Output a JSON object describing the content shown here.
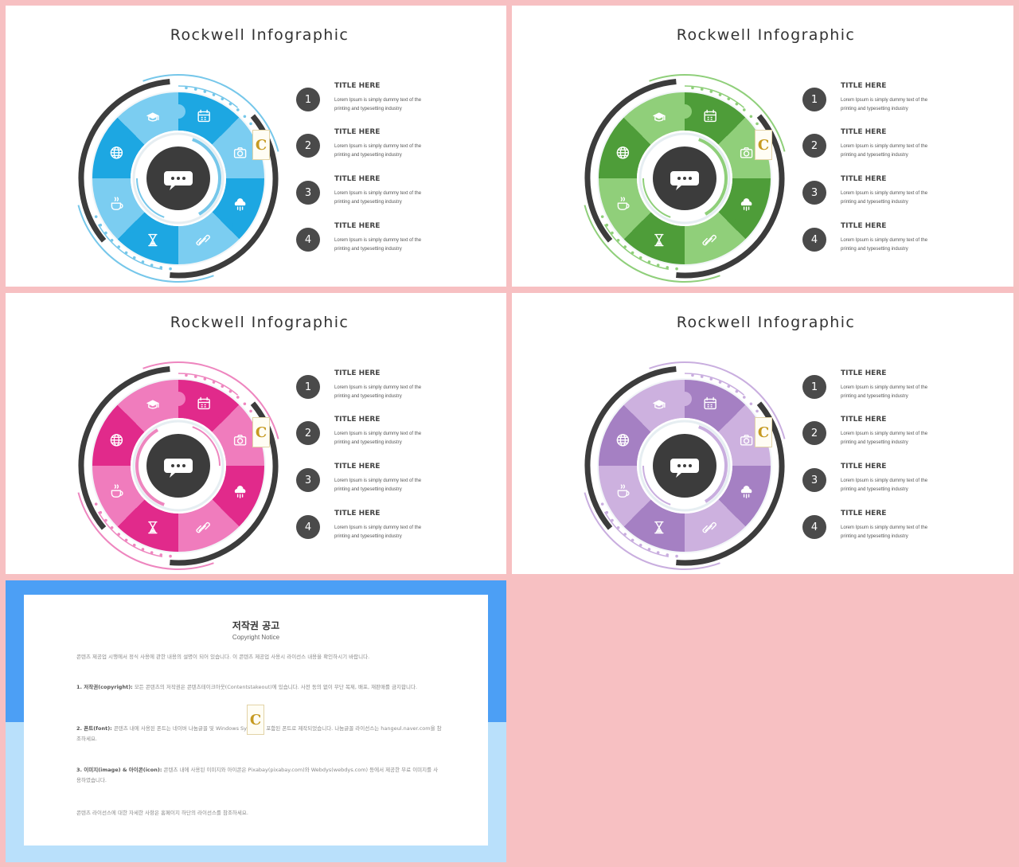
{
  "slides": [
    {
      "title": "Rockwell Infographic",
      "palette": {
        "dark": "#1da7e2",
        "light": "#7bcdf1",
        "ring": "#76c7ea"
      }
    },
    {
      "title": "Rockwell Infographic",
      "palette": {
        "dark": "#4e9d39",
        "light": "#90cf7a",
        "ring": "#8fcf7a"
      }
    },
    {
      "title": "Rockwell Infographic",
      "palette": {
        "dark": "#e12a8b",
        "light": "#f07cbd",
        "ring": "#ee86bf"
      }
    },
    {
      "title": "Rockwell Infographic",
      "palette": {
        "dark": "#a580c3",
        "light": "#cdb1df",
        "ring": "#c9aedf"
      }
    }
  ],
  "items": [
    {
      "num": "1",
      "title": "TITLE HERE",
      "desc": "Lorem Ipsum is simply dummy text of the printing and typesetting industry"
    },
    {
      "num": "2",
      "title": "TITLE HERE",
      "desc": "Lorem Ipsum is simply dummy text of the printing and typesetting industry"
    },
    {
      "num": "3",
      "title": "TITLE HERE",
      "desc": "Lorem Ipsum is simply dummy text of the printing and typesetting industry"
    },
    {
      "num": "4",
      "title": "TITLE HERE",
      "desc": "Lorem Ipsum is simply dummy text of the printing and typesetting industry"
    }
  ],
  "segment_icons": [
    "calendar-icon",
    "camera-icon",
    "weather-icon",
    "link-icon",
    "hourglass-icon",
    "coffee-icon",
    "globe-icon",
    "graduation-cap-icon"
  ],
  "center_icon": "speech-bubble-icon",
  "badge_letter": "C",
  "copyright": {
    "heading": "저작권 공고",
    "subheading": "Copyright Notice",
    "p0": "콘텐츠 제공업 시행에서 정식 사용에 관한 내용의 설명이 되어 있습니다. 이 콘텐츠 제공업 사용시 라이선스 내용을 확인하시기 바랍니다.",
    "p1_label": "1. 저작권(copyright):",
    "p1": " 모든 콘텐츠의 저작권은 콘텐츠테이크아웃(Contentstakeout)에 있습니다. 사전 동의 없이 무단 복제, 배포, 재판매를 금지합니다.",
    "p2_label": "2. 폰트(font):",
    "p2": " 콘텐츠 내에 사용된 폰트는 네이버 나눔글꼴 및 Windows System에 포함된 폰트로 제작되었습니다. 나눔글꼴 라이선스는 hangeul.naver.com을 참조하세요.",
    "p3_label": "3. 이미지(image) & 아이콘(icon):",
    "p3": " 콘텐츠 내에 사용된 이미지와 아이콘은 Pixabay(pixabay.com)와 Webdys(webdys.com) 등에서 제공한 무료 이미지를 사용하였습니다.",
    "p4": "콘텐츠 라이선스에 대한 자세한 사항은 홈페이지 하단의 라이선스를 참조하세요."
  }
}
